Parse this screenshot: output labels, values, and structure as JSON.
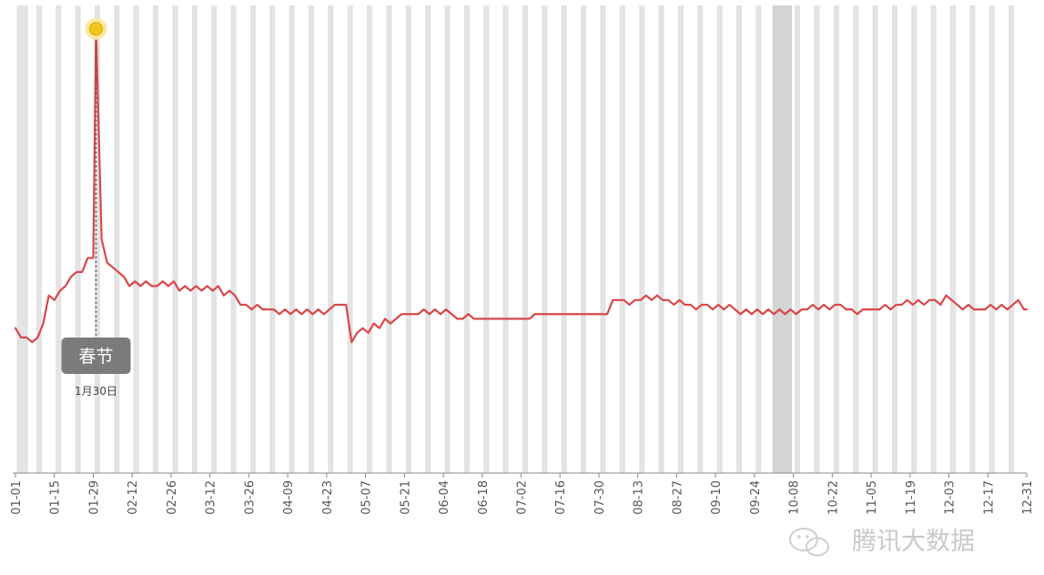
{
  "chart_data": {
    "type": "line",
    "title": "",
    "xlabel": "",
    "ylabel": "",
    "grid": false,
    "legend": "none",
    "x_tick_labels": [
      "01-01",
      "01-15",
      "01-29",
      "02-12",
      "02-26",
      "03-12",
      "03-26",
      "04-09",
      "04-23",
      "05-07",
      "05-21",
      "06-04",
      "06-18",
      "07-02",
      "07-16",
      "07-30",
      "08-13",
      "08-27",
      "09-10",
      "09-24",
      "10-08",
      "10-22",
      "11-05",
      "11-19",
      "12-03",
      "12-17",
      "12-31"
    ],
    "ylim": [
      0,
      100
    ],
    "colors": {
      "line": "#d9484a",
      "weekend_band": "#e2e2e2",
      "holiday_band": "#d4d4d4",
      "callout_bg": "#7b7b7b",
      "marker": "#f5c518",
      "axis": "#888888"
    },
    "series": [
      {
        "points": [
          [
            1,
            31
          ],
          [
            3,
            29
          ],
          [
            5,
            29
          ],
          [
            7,
            28
          ],
          [
            9,
            29
          ],
          [
            11,
            32
          ],
          [
            13,
            38
          ],
          [
            15,
            37
          ],
          [
            17,
            39
          ],
          [
            19,
            40
          ],
          [
            21,
            42
          ],
          [
            23,
            43
          ],
          [
            25,
            43
          ],
          [
            27,
            46
          ],
          [
            29,
            46
          ],
          [
            30,
            95
          ],
          [
            32,
            50
          ],
          [
            34,
            45
          ],
          [
            36,
            44
          ],
          [
            38,
            43
          ],
          [
            40,
            42
          ],
          [
            42,
            40
          ],
          [
            44,
            41
          ],
          [
            46,
            40
          ],
          [
            48,
            41
          ],
          [
            50,
            40
          ],
          [
            52,
            40
          ],
          [
            54,
            41
          ],
          [
            56,
            40
          ],
          [
            58,
            41
          ],
          [
            60,
            39
          ],
          [
            62,
            40
          ],
          [
            64,
            39
          ],
          [
            66,
            40
          ],
          [
            68,
            39
          ],
          [
            70,
            40
          ],
          [
            72,
            39
          ],
          [
            74,
            40
          ],
          [
            76,
            38
          ],
          [
            78,
            39
          ],
          [
            80,
            38
          ],
          [
            82,
            36
          ],
          [
            84,
            36
          ],
          [
            86,
            35
          ],
          [
            88,
            36
          ],
          [
            90,
            35
          ],
          [
            92,
            35
          ],
          [
            94,
            35
          ],
          [
            96,
            34
          ],
          [
            98,
            35
          ],
          [
            100,
            34
          ],
          [
            102,
            35
          ],
          [
            104,
            34
          ],
          [
            106,
            35
          ],
          [
            108,
            34
          ],
          [
            110,
            35
          ],
          [
            112,
            34
          ],
          [
            114,
            35
          ],
          [
            116,
            36
          ],
          [
            118,
            36
          ],
          [
            120,
            36
          ],
          [
            122,
            28
          ],
          [
            124,
            30
          ],
          [
            126,
            31
          ],
          [
            128,
            30
          ],
          [
            130,
            32
          ],
          [
            132,
            31
          ],
          [
            134,
            33
          ],
          [
            136,
            32
          ],
          [
            138,
            33
          ],
          [
            140,
            34
          ],
          [
            142,
            34
          ],
          [
            144,
            34
          ],
          [
            146,
            34
          ],
          [
            148,
            35
          ],
          [
            150,
            34
          ],
          [
            152,
            35
          ],
          [
            154,
            34
          ],
          [
            156,
            35
          ],
          [
            158,
            34
          ],
          [
            160,
            33
          ],
          [
            162,
            33
          ],
          [
            164,
            34
          ],
          [
            166,
            33
          ],
          [
            168,
            33
          ],
          [
            170,
            33
          ],
          [
            172,
            33
          ],
          [
            174,
            33
          ],
          [
            176,
            33
          ],
          [
            178,
            33
          ],
          [
            180,
            33
          ],
          [
            182,
            33
          ],
          [
            184,
            33
          ],
          [
            186,
            33
          ],
          [
            188,
            34
          ],
          [
            190,
            34
          ],
          [
            192,
            34
          ],
          [
            194,
            34
          ],
          [
            196,
            34
          ],
          [
            198,
            34
          ],
          [
            200,
            34
          ],
          [
            202,
            34
          ],
          [
            204,
            34
          ],
          [
            206,
            34
          ],
          [
            208,
            34
          ],
          [
            210,
            34
          ],
          [
            212,
            34
          ],
          [
            214,
            34
          ],
          [
            216,
            37
          ],
          [
            218,
            37
          ],
          [
            220,
            37
          ],
          [
            222,
            36
          ],
          [
            224,
            37
          ],
          [
            226,
            37
          ],
          [
            228,
            38
          ],
          [
            230,
            37
          ],
          [
            232,
            38
          ],
          [
            234,
            37
          ],
          [
            236,
            37
          ],
          [
            238,
            36
          ],
          [
            240,
            37
          ],
          [
            242,
            36
          ],
          [
            244,
            36
          ],
          [
            246,
            35
          ],
          [
            248,
            36
          ],
          [
            250,
            36
          ],
          [
            252,
            35
          ],
          [
            254,
            36
          ],
          [
            256,
            35
          ],
          [
            258,
            36
          ],
          [
            260,
            35
          ],
          [
            262,
            34
          ],
          [
            264,
            35
          ],
          [
            266,
            34
          ],
          [
            268,
            35
          ],
          [
            270,
            34
          ],
          [
            272,
            35
          ],
          [
            274,
            34
          ],
          [
            276,
            35
          ],
          [
            278,
            34
          ],
          [
            280,
            35
          ],
          [
            282,
            34
          ],
          [
            284,
            35
          ],
          [
            286,
            35
          ],
          [
            288,
            36
          ],
          [
            290,
            35
          ],
          [
            292,
            36
          ],
          [
            294,
            35
          ],
          [
            296,
            36
          ],
          [
            298,
            36
          ],
          [
            300,
            35
          ],
          [
            302,
            35
          ],
          [
            304,
            34
          ],
          [
            306,
            35
          ],
          [
            308,
            35
          ],
          [
            310,
            35
          ],
          [
            312,
            35
          ],
          [
            314,
            36
          ],
          [
            316,
            35
          ],
          [
            318,
            36
          ],
          [
            320,
            36
          ],
          [
            322,
            37
          ],
          [
            324,
            36
          ],
          [
            326,
            37
          ],
          [
            328,
            36
          ],
          [
            330,
            37
          ],
          [
            332,
            37
          ],
          [
            334,
            36
          ],
          [
            336,
            38
          ],
          [
            338,
            37
          ],
          [
            340,
            36
          ],
          [
            342,
            35
          ],
          [
            344,
            36
          ],
          [
            346,
            35
          ],
          [
            348,
            35
          ],
          [
            350,
            35
          ],
          [
            352,
            36
          ],
          [
            354,
            35
          ],
          [
            356,
            36
          ],
          [
            358,
            35
          ],
          [
            360,
            36
          ],
          [
            362,
            37
          ],
          [
            364,
            35
          ],
          [
            365,
            35
          ]
        ]
      }
    ],
    "weekend_days": [
      2,
      3,
      4,
      5,
      9,
      10,
      16,
      17,
      23,
      24,
      30,
      31,
      37,
      38,
      44,
      45,
      51,
      52,
      58,
      59,
      65,
      66,
      72,
      73,
      79,
      80,
      86,
      87,
      93,
      94,
      100,
      101,
      107,
      108,
      114,
      115,
      121,
      122,
      128,
      129,
      135,
      136,
      142,
      143,
      149,
      150,
      156,
      157,
      163,
      164,
      170,
      171,
      177,
      178,
      184,
      185,
      191,
      192,
      198,
      199,
      205,
      206,
      212,
      213,
      219,
      220,
      226,
      227,
      233,
      234,
      240,
      241,
      247,
      248,
      254,
      255,
      261,
      262,
      268,
      269,
      282,
      283,
      289,
      290,
      296,
      297,
      303,
      304,
      310,
      311,
      317,
      318,
      324,
      325,
      331,
      332,
      338,
      339,
      345,
      346,
      352,
      353,
      359,
      360
    ],
    "holiday_range": [
      274,
      280
    ],
    "annotation": {
      "day": 30,
      "label": "春节",
      "date_text": "1月30日"
    }
  },
  "watermark": {
    "text": "腾讯大数据",
    "icon": "wechat-icon"
  }
}
